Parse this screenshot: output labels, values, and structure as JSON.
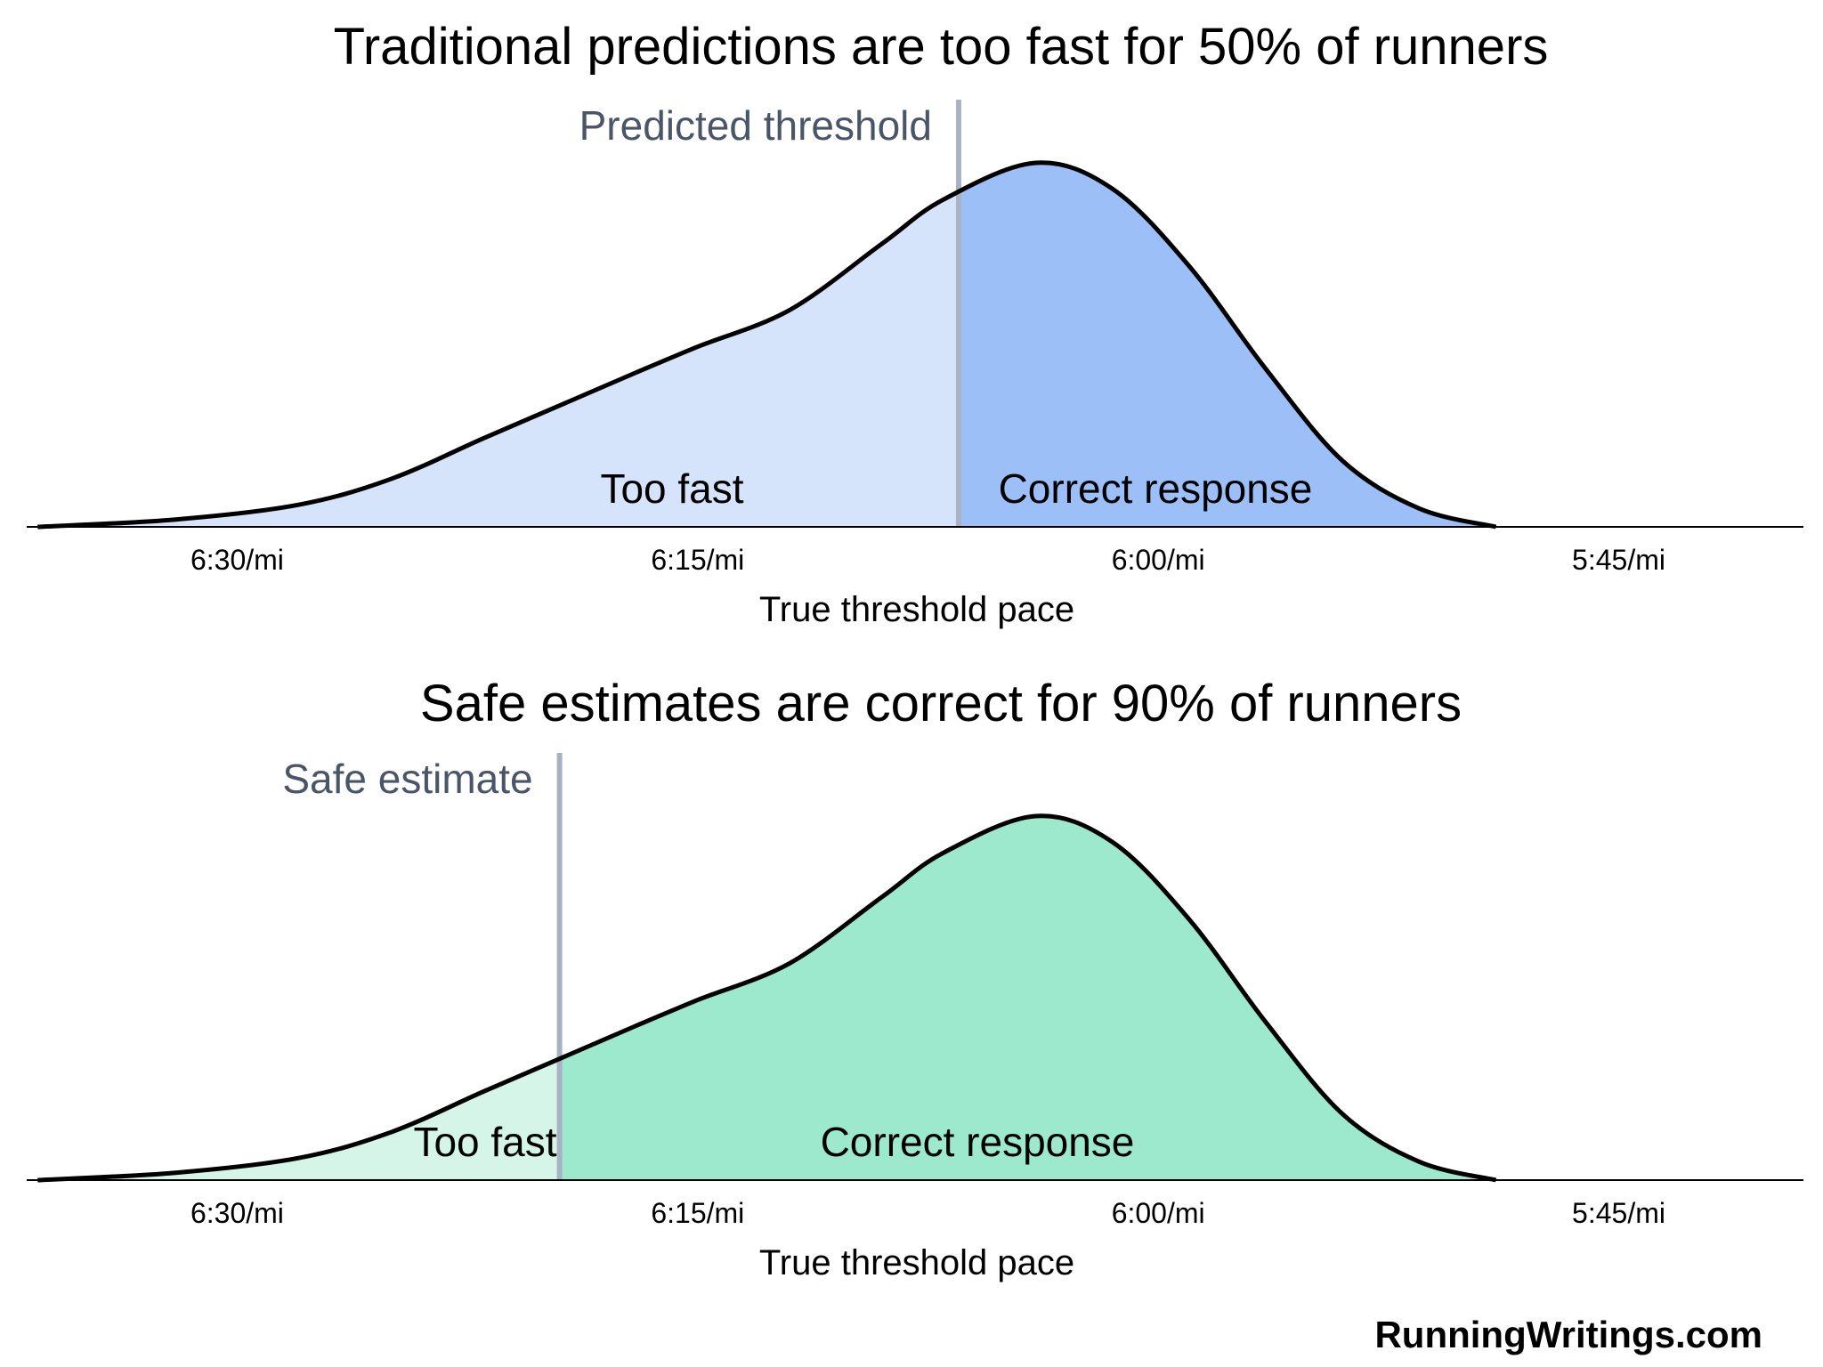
{
  "chart_data": [
    {
      "type": "area",
      "title": "Traditional predictions are too fast for 50% of runners",
      "xlabel": "True threshold pace",
      "ylabel": "",
      "x_unit": "seconds per mile (pace, axis reversed: slower on left)",
      "xlim": [
        395,
        342
      ],
      "x_ticks": [
        {
          "value": 390,
          "label": "6:30/mi"
        },
        {
          "value": 375,
          "label": "6:15/mi"
        },
        {
          "value": 360,
          "label": "6:00/mi"
        },
        {
          "value": 345,
          "label": "5:45/mi"
        }
      ],
      "grid": false,
      "legend": "none",
      "threshold": {
        "value": 366.5,
        "label": "Predicted threshold",
        "color": "#a9b2c3"
      },
      "regions": [
        {
          "label": "Too fast",
          "from": 395,
          "to": 366.5,
          "color": "#d6e4fb"
        },
        {
          "label": "Correct response",
          "from": 366.5,
          "to": 342,
          "color": "#9dbff8"
        }
      ],
      "density": {
        "x": [
          396.5,
          392,
          388,
          385,
          382,
          379.5,
          377,
          375,
          372,
          369,
          367,
          364,
          361.5,
          359,
          356.5,
          354,
          351.5,
          349
        ],
        "y": [
          0,
          0.02,
          0.06,
          0.13,
          0.24,
          0.33,
          0.42,
          0.49,
          0.59,
          0.77,
          0.89,
          0.99,
          0.92,
          0.71,
          0.43,
          0.18,
          0.05,
          0
        ]
      }
    },
    {
      "type": "area",
      "title": "Safe estimates are correct for 90% of runners",
      "xlabel": "True threshold pace",
      "ylabel": "",
      "x_unit": "seconds per mile (pace, axis reversed: slower on left)",
      "xlim": [
        395,
        342
      ],
      "x_ticks": [
        {
          "value": 390,
          "label": "6:30/mi"
        },
        {
          "value": 375,
          "label": "6:15/mi"
        },
        {
          "value": 360,
          "label": "6:00/mi"
        },
        {
          "value": 345,
          "label": "5:45/mi"
        }
      ],
      "grid": false,
      "legend": "none",
      "threshold": {
        "value": 379.5,
        "label": "Safe estimate",
        "color": "#a9b2c3"
      },
      "regions": [
        {
          "label": "Too fast",
          "from": 395,
          "to": 379.5,
          "color": "#d5f5e8"
        },
        {
          "label": "Correct response",
          "from": 379.5,
          "to": 342,
          "color": "#9de9ce"
        }
      ],
      "density": {
        "x": [
          396.5,
          392,
          388,
          385,
          382,
          379.5,
          377,
          375,
          372,
          369,
          367,
          364,
          361.5,
          359,
          356.5,
          354,
          351.5,
          349
        ],
        "y": [
          0,
          0.02,
          0.06,
          0.13,
          0.24,
          0.33,
          0.42,
          0.49,
          0.59,
          0.77,
          0.89,
          0.99,
          0.92,
          0.71,
          0.43,
          0.18,
          0.05,
          0
        ]
      }
    }
  ],
  "footer": {
    "credit": "RunningWritings.com"
  }
}
